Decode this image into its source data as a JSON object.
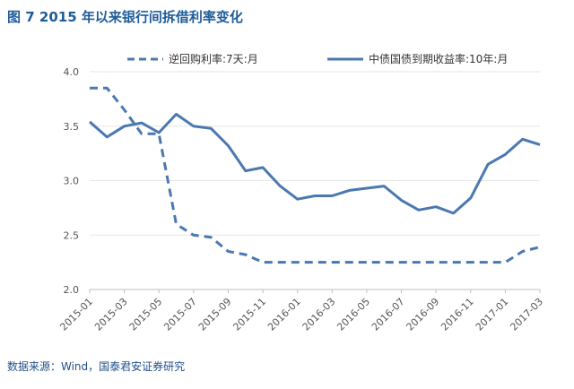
{
  "title": "图 7 2015 年以来银行间拆借利率变化",
  "source": "数据来源：Wind，国泰君安证券研究",
  "colors": {
    "series": "#4a78b0",
    "axis": "#bfbfbf",
    "grid": "#e6e6e6",
    "title": "#1f5c99"
  },
  "chart_data": {
    "type": "line",
    "title": "",
    "xlabel": "",
    "ylabel": "",
    "ylim": [
      2.0,
      4.0
    ],
    "yticks": [
      "2.0",
      "2.5",
      "3.0",
      "3.5",
      "4.0"
    ],
    "grid": "horizontal",
    "legend_position": "top",
    "x_tick_labels": [
      "2015-01",
      "2015-03",
      "2015-05",
      "2015-07",
      "2015-09",
      "2015-11",
      "2016-01",
      "2016-03",
      "2016-05",
      "2016-07",
      "2016-09",
      "2016-11",
      "2017-01",
      "2017-03"
    ],
    "x": [
      "2015-01",
      "2015-02",
      "2015-03",
      "2015-04",
      "2015-05",
      "2015-06",
      "2015-07",
      "2015-08",
      "2015-09",
      "2015-10",
      "2015-11",
      "2015-12",
      "2016-01",
      "2016-02",
      "2016-03",
      "2016-04",
      "2016-05",
      "2016-06",
      "2016-07",
      "2016-08",
      "2016-09",
      "2016-10",
      "2016-11",
      "2016-12",
      "2017-01",
      "2017-02",
      "2017-03"
    ],
    "series": [
      {
        "name": "逆回购利率:7天:月",
        "style": "dashed",
        "values": [
          3.85,
          3.85,
          3.65,
          3.43,
          3.43,
          2.6,
          2.5,
          2.48,
          2.35,
          2.32,
          2.25,
          2.25,
          2.25,
          2.25,
          2.25,
          2.25,
          2.25,
          2.25,
          2.25,
          2.25,
          2.25,
          2.25,
          2.25,
          2.25,
          2.25,
          2.35,
          2.39
        ]
      },
      {
        "name": "中债国债到期收益率:10年:月",
        "style": "solid",
        "values": [
          3.54,
          3.4,
          3.5,
          3.53,
          3.44,
          3.61,
          3.5,
          3.48,
          3.32,
          3.09,
          3.12,
          2.95,
          2.83,
          2.86,
          2.86,
          2.91,
          2.93,
          2.95,
          2.82,
          2.73,
          2.76,
          2.7,
          2.84,
          3.15,
          3.24,
          3.38,
          3.33
        ]
      }
    ]
  }
}
